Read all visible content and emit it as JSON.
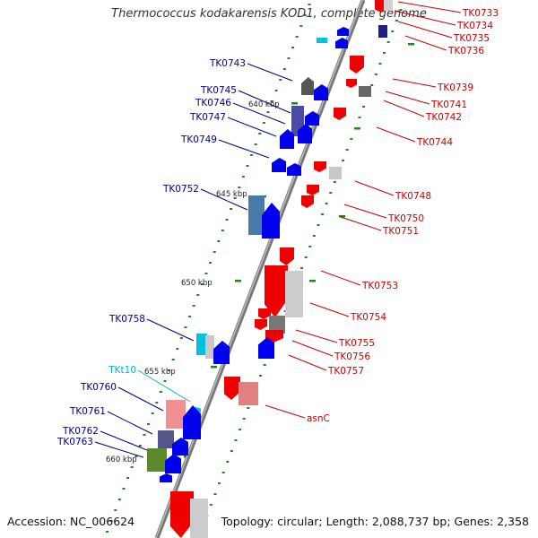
{
  "title": "Thermococcus kodakarensis KOD1, complete genome",
  "footer": {
    "accession": "Accession: NC_006624",
    "summary": "Topology: circular; Length: 2,088,737 bp; Genes: 2,358"
  },
  "scale_labels": [
    "640 kbp",
    "645 kbp",
    "650 kbp",
    "655 kbp",
    "660 kbp"
  ],
  "colors": {
    "forward_gene": "#0000ee",
    "reverse_gene": "#ee0000",
    "trna": "#00c0e0",
    "backbone": "#888888",
    "tick": "#1a8a1a"
  },
  "forward_labels": [
    "TK0743",
    "TK0745",
    "TK0746",
    "TK0747",
    "TK0749",
    "TK0752",
    "TK0758",
    "TKt10",
    "TK0760",
    "TK0761",
    "TK0762",
    "TK0763"
  ],
  "reverse_labels": [
    "TK0733",
    "TK0734",
    "TK0735",
    "TK0736",
    "TK0739",
    "TK0741",
    "TK0742",
    "TK0744",
    "TK0748",
    "TK0750",
    "TK0751",
    "TK0753",
    "TK0754",
    "TK0755",
    "TK0756",
    "TK0757",
    "asnC"
  ]
}
